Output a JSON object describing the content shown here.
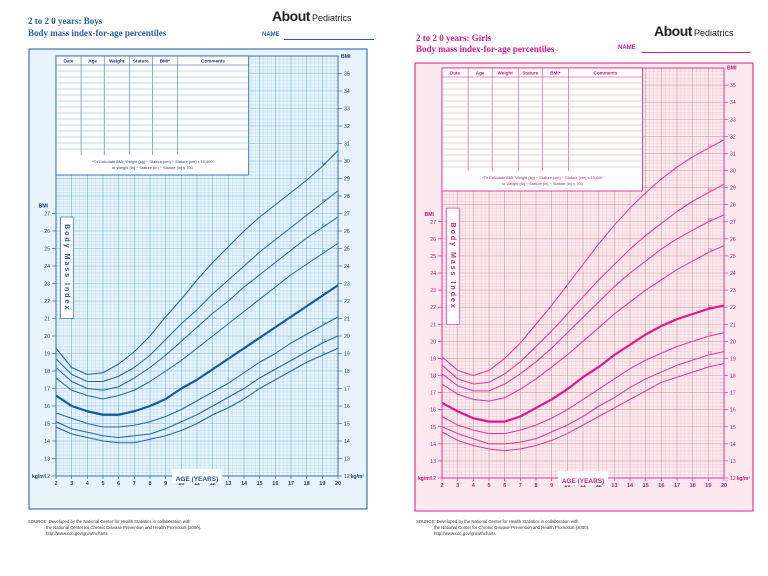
{
  "chart_data": [
    {
      "type": "line",
      "title": "2 to 2 0 years:  Boys",
      "subtitle": "Body mass index-for-age percentiles",
      "xlabel": "AGE (YEARS)",
      "ylabel": "Body Mass Index",
      "bmi_label": "BMI",
      "unit_label": "kg/m²",
      "xlim": [
        2,
        20
      ],
      "ylim": [
        12,
        36
      ],
      "x_ticks": [
        2,
        3,
        4,
        5,
        6,
        7,
        8,
        9,
        10,
        11,
        12,
        13,
        14,
        15,
        16,
        17,
        18,
        19,
        20
      ],
      "y_ticks_upper": [
        21,
        22,
        23,
        24,
        25,
        26,
        27,
        28,
        29,
        30,
        31,
        32,
        33,
        34,
        35
      ],
      "y_ticks_lower": [
        12,
        13,
        14,
        15,
        16,
        17,
        18,
        19,
        20,
        21,
        22,
        23,
        24,
        25,
        26,
        27
      ],
      "grid": true,
      "table_headers": [
        "Date",
        "Age",
        "Weight",
        "Stature",
        "BMI*",
        "Comments"
      ],
      "formula_line1": "*To Calculate BMI: Weight (kg) ÷ Stature (cm) ÷ Stature (cm) x 10,000",
      "formula_line2": "or Weight (lb) ÷ Stature (in) ÷ Stature (in) x 703",
      "x": [
        2,
        3,
        4,
        5,
        6,
        7,
        8,
        9,
        10,
        11,
        12,
        13,
        14,
        15,
        16,
        17,
        18,
        19,
        20
      ],
      "series": [
        {
          "name": "95",
          "values": [
            19.3,
            18.2,
            17.8,
            17.9,
            18.4,
            19.1,
            20.0,
            21.1,
            22.1,
            23.2,
            24.2,
            25.1,
            26.0,
            26.8,
            27.5,
            28.2,
            28.9,
            29.7,
            30.6
          ]
        },
        {
          "name": "90",
          "values": [
            18.7,
            17.8,
            17.4,
            17.4,
            17.7,
            18.2,
            18.9,
            19.8,
            20.7,
            21.5,
            22.4,
            23.2,
            24.0,
            24.8,
            25.5,
            26.2,
            26.9,
            27.6,
            28.3
          ]
        },
        {
          "name": "85",
          "values": [
            18.2,
            17.4,
            17.0,
            16.9,
            17.1,
            17.6,
            18.2,
            18.9,
            19.7,
            20.5,
            21.3,
            22.0,
            22.8,
            23.5,
            24.2,
            24.9,
            25.6,
            26.2,
            26.8
          ]
        },
        {
          "name": "75",
          "values": [
            17.6,
            16.9,
            16.6,
            16.4,
            16.6,
            16.9,
            17.4,
            18.0,
            18.6,
            19.3,
            20.0,
            20.7,
            21.4,
            22.1,
            22.8,
            23.5,
            24.1,
            24.7,
            25.3
          ]
        },
        {
          "name": "50",
          "values": [
            16.6,
            16.0,
            15.7,
            15.5,
            15.5,
            15.7,
            16.0,
            16.4,
            17.0,
            17.5,
            18.1,
            18.7,
            19.3,
            19.9,
            20.5,
            21.1,
            21.7,
            22.3,
            22.9
          ]
        },
        {
          "name": "25",
          "values": [
            15.6,
            15.3,
            15.0,
            14.8,
            14.8,
            14.9,
            15.1,
            15.4,
            15.8,
            16.3,
            16.8,
            17.3,
            17.9,
            18.5,
            19.0,
            19.6,
            20.1,
            20.6,
            21.1
          ]
        },
        {
          "name": "10",
          "values": [
            15.1,
            14.7,
            14.5,
            14.3,
            14.2,
            14.3,
            14.4,
            14.7,
            15.1,
            15.5,
            16.0,
            16.5,
            17.0,
            17.6,
            18.1,
            18.6,
            19.1,
            19.6,
            20.0
          ]
        },
        {
          "name": "5",
          "values": [
            14.8,
            14.4,
            14.2,
            14.0,
            13.9,
            13.9,
            14.1,
            14.3,
            14.6,
            15.0,
            15.5,
            15.9,
            16.4,
            17.0,
            17.5,
            18.0,
            18.5,
            18.9,
            19.3
          ]
        }
      ],
      "colors": {
        "line": "#2464ad",
        "line_bold": "#1a56a3",
        "bg": "#e8f4fb",
        "grid_minor": "#a8d4ee",
        "grid_major": "#6cb1dd",
        "text": "#1d57a5",
        "dark_text": "#1b3f7a"
      }
    },
    {
      "type": "line",
      "title": "2 to 2 0 years:  Girls",
      "subtitle": "Body mass index-for-age percentiles",
      "xlabel": "AGE (YEARS)",
      "ylabel": "Body Mass Index",
      "bmi_label": "BMI",
      "unit_label": "kg/m²",
      "xlim": [
        2,
        20
      ],
      "ylim": [
        12,
        36
      ],
      "x_ticks": [
        2,
        3,
        4,
        5,
        6,
        7,
        8,
        9,
        10,
        11,
        12,
        13,
        14,
        15,
        16,
        17,
        18,
        19,
        20
      ],
      "y_ticks_upper": [
        21,
        22,
        23,
        24,
        25,
        26,
        27,
        28,
        29,
        30,
        31,
        32,
        33,
        34,
        35
      ],
      "y_ticks_lower": [
        12,
        13,
        14,
        15,
        16,
        17,
        18,
        19,
        20,
        21,
        22,
        23,
        24,
        25,
        26,
        27
      ],
      "grid": true,
      "table_headers": [
        "Date",
        "Age",
        "Weight",
        "Stature",
        "BMI*",
        "Comments"
      ],
      "formula_line1": "*To Calculate BMI: Weight (kg) ÷ Stature (cm) ÷ Stature (cm) x 10,000",
      "formula_line2": "or Weight (lb) ÷ Stature (in) ÷ Stature (in) x 703",
      "x": [
        2,
        3,
        4,
        5,
        6,
        7,
        8,
        9,
        10,
        11,
        12,
        13,
        14,
        15,
        16,
        17,
        18,
        19,
        20
      ],
      "series": [
        {
          "name": "95",
          "values": [
            19.1,
            18.3,
            18.0,
            18.3,
            19.0,
            19.9,
            21.0,
            22.1,
            23.3,
            24.5,
            25.7,
            26.8,
            27.8,
            28.7,
            29.5,
            30.2,
            30.8,
            31.3,
            31.8
          ]
        },
        {
          "name": "90",
          "values": [
            18.6,
            17.8,
            17.5,
            17.6,
            18.1,
            18.8,
            19.7,
            20.6,
            21.6,
            22.6,
            23.6,
            24.5,
            25.4,
            26.2,
            26.9,
            27.6,
            28.2,
            28.7,
            29.2
          ]
        },
        {
          "name": "85",
          "values": [
            18.1,
            17.4,
            17.1,
            17.1,
            17.5,
            18.1,
            18.8,
            19.6,
            20.5,
            21.4,
            22.3,
            23.2,
            24.0,
            24.7,
            25.4,
            26.0,
            26.5,
            27.0,
            27.4
          ]
        },
        {
          "name": "75",
          "values": [
            17.5,
            16.9,
            16.6,
            16.5,
            16.7,
            17.2,
            17.8,
            18.5,
            19.2,
            20.0,
            20.8,
            21.6,
            22.3,
            23.0,
            23.6,
            24.2,
            24.7,
            25.2,
            25.6
          ]
        },
        {
          "name": "50",
          "values": [
            16.4,
            15.9,
            15.5,
            15.3,
            15.3,
            15.6,
            16.1,
            16.6,
            17.2,
            17.9,
            18.5,
            19.2,
            19.8,
            20.4,
            20.9,
            21.3,
            21.6,
            21.9,
            22.1
          ]
        },
        {
          "name": "25",
          "values": [
            15.6,
            15.1,
            14.8,
            14.6,
            14.6,
            14.8,
            15.1,
            15.5,
            16.0,
            16.6,
            17.2,
            17.8,
            18.4,
            18.9,
            19.3,
            19.7,
            20.0,
            20.3,
            20.5
          ]
        },
        {
          "name": "10",
          "values": [
            15.0,
            14.6,
            14.3,
            14.0,
            14.0,
            14.1,
            14.3,
            14.7,
            15.1,
            15.6,
            16.2,
            16.7,
            17.3,
            17.8,
            18.2,
            18.6,
            18.9,
            19.2,
            19.4
          ]
        },
        {
          "name": "5",
          "values": [
            14.7,
            14.2,
            13.9,
            13.7,
            13.6,
            13.7,
            13.9,
            14.2,
            14.6,
            15.1,
            15.6,
            16.1,
            16.6,
            17.1,
            17.6,
            17.9,
            18.2,
            18.5,
            18.7
          ]
        }
      ],
      "colors": {
        "line": "#e8379a",
        "line_bold": "#e0188a",
        "bg": "#fce8ef",
        "grid_minor": "#ebc3d0",
        "grid_major": "#c7a096",
        "text": "#e0188a",
        "dark_text": "#c0157a"
      }
    }
  ],
  "boys_header": {
    "title": "2 to 2 0 years:  Boys",
    "subtitle": "Body mass index-for-age percentiles",
    "name_label": "NAME"
  },
  "girls_header": {
    "title": "2 to 2 0 years:  Girls",
    "subtitle": "Body mass index-for-age percentiles",
    "name_label": "NAME"
  },
  "logo": {
    "about": "About",
    "pediatrics": "Pediatrics"
  },
  "source": {
    "line1": "SOURCE:  Developed by the National Center for Health Statistics in collaboration with",
    "line2": "the National Center for Chronic Disease Prevention and Health Promotion (2000).",
    "line3": "http://www.cdc.gov/growthcharts"
  }
}
